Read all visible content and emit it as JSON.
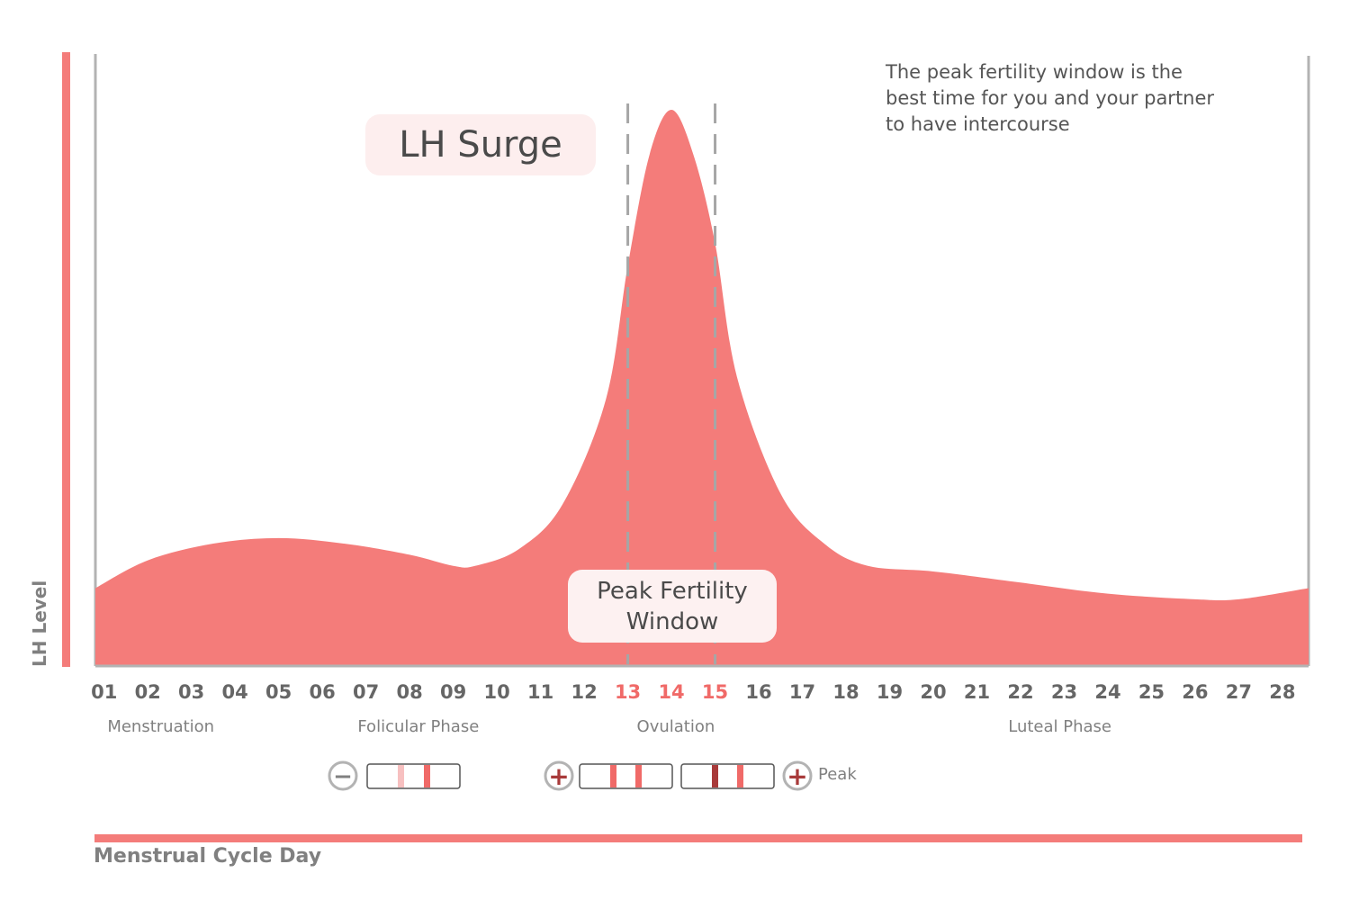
{
  "chart_data": {
    "type": "area",
    "title": "",
    "xlabel": "Menstrual Cycle Day",
    "ylabel": "LH Level",
    "x_ticks": [
      "01",
      "02",
      "03",
      "04",
      "05",
      "06",
      "07",
      "08",
      "09",
      "10",
      "11",
      "12",
      "13",
      "14",
      "15",
      "16",
      "17",
      "18",
      "19",
      "20",
      "21",
      "22",
      "23",
      "24",
      "25",
      "26",
      "27",
      "28"
    ],
    "highlight_ticks": [
      "13",
      "14",
      "15"
    ],
    "series": [
      {
        "values": [
          {
            "x": 0.8,
            "y": 14
          },
          {
            "x": 2,
            "y": 19
          },
          {
            "x": 3.5,
            "y": 22
          },
          {
            "x": 5,
            "y": 23
          },
          {
            "x": 6.5,
            "y": 22
          },
          {
            "x": 8,
            "y": 20
          },
          {
            "x": 9,
            "y": 18
          },
          {
            "x": 9.5,
            "y": 18
          },
          {
            "x": 10.5,
            "y": 21
          },
          {
            "x": 11.5,
            "y": 29
          },
          {
            "x": 12.5,
            "y": 48
          },
          {
            "x": 13,
            "y": 72
          },
          {
            "x": 13.5,
            "y": 92
          },
          {
            "x": 14,
            "y": 100
          },
          {
            "x": 14.5,
            "y": 92
          },
          {
            "x": 15,
            "y": 76
          },
          {
            "x": 15.5,
            "y": 52
          },
          {
            "x": 16.5,
            "y": 31
          },
          {
            "x": 17.5,
            "y": 22
          },
          {
            "x": 18.5,
            "y": 18
          },
          {
            "x": 20,
            "y": 17
          },
          {
            "x": 22,
            "y": 15
          },
          {
            "x": 24,
            "y": 13
          },
          {
            "x": 26,
            "y": 12
          },
          {
            "x": 27,
            "y": 12
          },
          {
            "x": 28.6,
            "y": 14
          }
        ]
      }
    ],
    "xlim": [
      0.8,
      28.6
    ],
    "ylim": [
      0,
      100
    ],
    "fertility_window": [
      13,
      15
    ],
    "phases": [
      {
        "label": "Menstruation",
        "x": 2.3
      },
      {
        "label": "Folicular Phase",
        "x": 8.2
      },
      {
        "label": "Ovulation",
        "x": 14.1
      },
      {
        "label": "Luteal Phase",
        "x": 22.9
      }
    ],
    "annotations": {
      "surge": "LH Surge",
      "window": "Peak Fertility\nWindow",
      "note": "The peak fertility window is the\nbest time for you and your partner\n to have intercourse"
    },
    "test_strips": {
      "negative_symbol": "−",
      "positive_symbol": "+",
      "peak_label": "Peak"
    },
    "colors": {
      "area": "#f47c7a",
      "accent": "#f06a68",
      "dark_line": "#a83a3a",
      "light_line": "#f7c0c0",
      "axis": "#b3b3b3",
      "dashed": "#a6a6a6",
      "tick": "#666666",
      "badge": "#fdeeee"
    },
    "grid": false,
    "legend": "none"
  }
}
